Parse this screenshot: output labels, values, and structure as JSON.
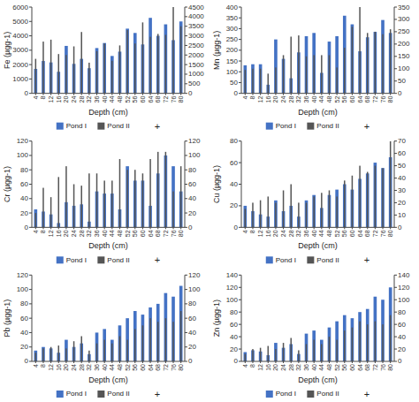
{
  "chart_data": [
    {
      "type": "bar",
      "xlabel": "Depth (cm)",
      "ylabel": "Fe (µgg-1)",
      "categories": [
        4,
        8,
        12,
        16,
        20,
        24,
        28,
        32,
        36,
        40,
        44,
        48,
        52,
        56,
        60,
        64,
        68,
        72,
        76,
        80
      ],
      "series": [
        {
          "name": "Pond I",
          "color": "#4472C4",
          "values": [
            1700,
            2250,
            2150,
            1500,
            3300,
            2050,
            2400,
            1750,
            3150,
            3500,
            2600,
            2900,
            4500,
            4200,
            3400,
            5250,
            4000,
            4800,
            3700,
            5000
          ]
        },
        {
          "name": "Pond II",
          "color": "#555555",
          "axis": "y2",
          "values": [
            1800,
            2700,
            2800,
            2050,
            2000,
            2450,
            3200,
            1600,
            2200,
            2600,
            1700,
            2500,
            3300,
            2600,
            3700,
            2950,
            3100,
            3050,
            4500,
            3500
          ]
        }
      ],
      "ylim": [
        0,
        6000
      ],
      "yticks": [
        0,
        1000,
        2000,
        3000,
        4000,
        5000,
        6000
      ],
      "y2lim": [
        0,
        4500
      ],
      "y2ticks": [
        0,
        500,
        1000,
        1500,
        2000,
        2500,
        3000,
        3500,
        4000,
        4500
      ],
      "annotations": [
        "+"
      ],
      "legend": "bottom",
      "grid": false
    },
    {
      "type": "bar",
      "xlabel": "Depth (cm)",
      "ylabel": "Mn (µgg-1)",
      "categories": [
        4,
        8,
        12,
        16,
        20,
        24,
        28,
        32,
        36,
        40,
        44,
        48,
        52,
        56,
        60,
        64,
        68,
        72,
        76,
        80
      ],
      "series": [
        {
          "name": "Pond I",
          "color": "#4472C4",
          "values": [
            130,
            135,
            135,
            40,
            250,
            160,
            70,
            190,
            265,
            280,
            95,
            240,
            265,
            360,
            320,
            195,
            260,
            285,
            340,
            280
          ]
        },
        {
          "name": "Pond II",
          "color": "#555555",
          "axis": "y2",
          "values": [
            95,
            100,
            100,
            80,
            105,
            155,
            230,
            235,
            150,
            155,
            155,
            155,
            105,
            185,
            270,
            350,
            245,
            250,
            240,
            260
          ]
        }
      ],
      "ylim": [
        0,
        400
      ],
      "yticks": [
        0,
        50,
        100,
        150,
        200,
        250,
        300,
        350,
        400
      ],
      "y2lim": [
        0,
        350
      ],
      "y2ticks": [
        0,
        50,
        100,
        150,
        200,
        250,
        300,
        350
      ],
      "annotations": [
        "+"
      ],
      "legend": "bottom",
      "grid": false
    },
    {
      "type": "bar",
      "xlabel": "Depth (cm)",
      "ylabel": "Cr (µgg-1)",
      "categories": [
        4,
        8,
        12,
        16,
        20,
        24,
        28,
        32,
        36,
        40,
        44,
        48,
        52,
        56,
        60,
        64,
        68,
        72,
        76,
        80
      ],
      "series": [
        {
          "name": "Pond I",
          "color": "#4472C4",
          "values": [
            25,
            22,
            18,
            6,
            35,
            30,
            32,
            8,
            50,
            47,
            47,
            25,
            85,
            65,
            65,
            30,
            75,
            100,
            85,
            50
          ]
        },
        {
          "name": "Pond II",
          "color": "#555555",
          "axis": "y2",
          "values": [
            20,
            55,
            42,
            70,
            85,
            60,
            58,
            75,
            75,
            65,
            65,
            95,
            80,
            80,
            75,
            95,
            105,
            105,
            50,
            85
          ]
        }
      ],
      "ylim": [
        0,
        120
      ],
      "yticks": [
        0,
        20,
        40,
        60,
        80,
        100,
        120
      ],
      "y2lim": [
        0,
        120
      ],
      "y2ticks": [
        0,
        20,
        40,
        60,
        80,
        100,
        120
      ],
      "annotations": [
        "+"
      ],
      "legend": "bottom",
      "grid": false
    },
    {
      "type": "bar",
      "xlabel": "Depth (cm)",
      "ylabel": "Cu (µgg-1)",
      "categories": [
        4,
        8,
        12,
        16,
        20,
        24,
        28,
        32,
        36,
        40,
        44,
        48,
        52,
        56,
        60,
        64,
        68,
        72,
        76,
        80
      ],
      "series": [
        {
          "name": "Pond I",
          "color": "#4472C4",
          "values": [
            20,
            15,
            12,
            10,
            25,
            15,
            20,
            10,
            25,
            30,
            18,
            30,
            35,
            40,
            35,
            45,
            50,
            60,
            55,
            65
          ]
        },
        {
          "name": "Pond II",
          "color": "#555555",
          "axis": "y2",
          "values": [
            15,
            20,
            22,
            25,
            20,
            30,
            35,
            20,
            20,
            25,
            28,
            30,
            25,
            38,
            42,
            50,
            45,
            50,
            48,
            70
          ]
        }
      ],
      "ylim": [
        0,
        80
      ],
      "yticks": [
        0,
        20,
        40,
        60,
        80
      ],
      "y2lim": [
        0,
        70
      ],
      "y2ticks": [
        0,
        10,
        20,
        30,
        40,
        50,
        60,
        70
      ],
      "annotations": [
        "+"
      ],
      "legend": "bottom",
      "grid": false
    },
    {
      "type": "bar",
      "xlabel": "Depth (cm)",
      "ylabel": "Pb (µgg-1)",
      "categories": [
        4,
        8,
        12,
        16,
        20,
        24,
        28,
        32,
        36,
        40,
        44,
        48,
        52,
        56,
        60,
        64,
        68,
        72,
        76,
        80
      ],
      "series": [
        {
          "name": "Pond I",
          "color": "#4472C4",
          "values": [
            15,
            20,
            18,
            12,
            30,
            20,
            25,
            10,
            40,
            45,
            30,
            50,
            60,
            70,
            65,
            75,
            80,
            95,
            90,
            105
          ]
        },
        {
          "name": "Pond II",
          "color": "#555555",
          "axis": "y2",
          "values": [
            12,
            18,
            20,
            22,
            18,
            28,
            35,
            15,
            25,
            30,
            25,
            35,
            30,
            45,
            50,
            60,
            55,
            60,
            55,
            70
          ]
        }
      ],
      "ylim": [
        0,
        120
      ],
      "yticks": [
        0,
        20,
        40,
        60,
        80,
        100,
        120
      ],
      "y2lim": [
        0,
        120
      ],
      "y2ticks": [
        0,
        20,
        40,
        60,
        80,
        100,
        120
      ],
      "annotations": [
        "+"
      ],
      "legend": "bottom",
      "grid": false
    },
    {
      "type": "bar",
      "xlabel": "Depth (cm)",
      "ylabel": "Zn (µgg-1)",
      "categories": [
        4,
        8,
        12,
        16,
        20,
        24,
        28,
        32,
        36,
        40,
        44,
        48,
        52,
        56,
        60,
        64,
        68,
        72,
        76,
        80
      ],
      "series": [
        {
          "name": "Pond I",
          "color": "#4472C4",
          "values": [
            15,
            18,
            16,
            10,
            30,
            22,
            28,
            12,
            45,
            50,
            35,
            55,
            65,
            75,
            70,
            80,
            85,
            105,
            100,
            120
          ]
        },
        {
          "name": "Pond II",
          "color": "#555555",
          "axis": "y2",
          "values": [
            12,
            20,
            22,
            25,
            20,
            30,
            38,
            18,
            28,
            35,
            28,
            40,
            35,
            50,
            55,
            65,
            60,
            65,
            60,
            75
          ]
        }
      ],
      "ylim": [
        0,
        140
      ],
      "yticks": [
        0,
        20,
        40,
        60,
        80,
        100,
        120,
        140
      ],
      "y2lim": [
        0,
        140
      ],
      "y2ticks": [
        0,
        20,
        40,
        60,
        80,
        100,
        120,
        140
      ],
      "annotations": [
        "+"
      ],
      "legend": "bottom",
      "grid": false
    }
  ]
}
